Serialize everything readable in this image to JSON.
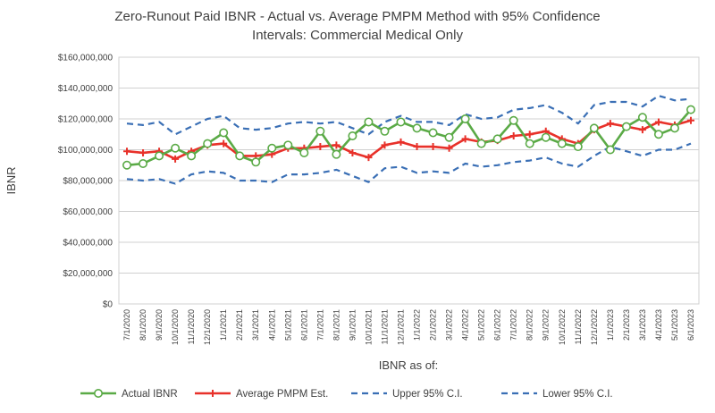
{
  "chart_data": {
    "type": "line",
    "title_line1": "Zero-Runout Paid IBNR - Actual vs. Average PMPM Method with 95% Confidence",
    "title_line2": "Intervals: Commercial Medical Only",
    "ylabel": "IBNR",
    "xlabel": "IBNR as of:",
    "ylim": [
      0,
      160000000
    ],
    "y_ticks": [
      0,
      20000000,
      40000000,
      60000000,
      80000000,
      100000000,
      120000000,
      140000000,
      160000000
    ],
    "y_tick_labels": [
      "$0",
      "$20,000,000",
      "$40,000,000",
      "$60,000,000",
      "$80,000,000",
      "$100,000,000",
      "$120,000,000",
      "$140,000,000",
      "$160,000,000"
    ],
    "grid": "horizontal",
    "legend_position": "bottom",
    "categories": [
      "7/1/2020",
      "8/1/2020",
      "9/1/2020",
      "10/1/2020",
      "11/1/2020",
      "12/1/2020",
      "1/1/2021",
      "2/1/2021",
      "3/1/2021",
      "4/1/2021",
      "5/1/2021",
      "6/1/2021",
      "7/1/2021",
      "8/1/2021",
      "9/1/2021",
      "10/1/2021",
      "11/1/2021",
      "12/1/2021",
      "1/1/2022",
      "2/1/2022",
      "3/1/2022",
      "4/1/2022",
      "5/1/2022",
      "6/1/2022",
      "7/1/2022",
      "8/1/2022",
      "9/1/2022",
      "10/1/2022",
      "11/1/2022",
      "12/1/2022",
      "1/1/2023",
      "2/1/2023",
      "3/1/2023",
      "4/1/2023",
      "5/1/2023",
      "6/1/2023"
    ],
    "x_axis_labels": [
      "7/1/2020",
      "8/1/2020",
      "9/1/2020",
      "10/1/2020",
      "11/1/2020",
      "12/1/2020",
      "1/1/2021",
      "2/1/2021",
      "3/1/2021",
      "4/1/2021",
      "5/1/2021",
      "6/1/2021",
      "7/1/2021",
      "8/1/2021",
      "9/1/2021",
      "10/1/2021",
      "11/1/2021",
      "12/1/2021",
      "1/1/2022",
      "2/1/2022",
      "3/1/2022",
      "4/1/2022",
      "5/1/2022",
      "6/1/2022",
      "7/1/2022",
      "8/1/2022",
      "9/1/2022",
      "10/1/2022",
      "11/1/2022",
      "12/1/2022",
      "1/1/2023",
      "2/1/2023",
      "3/1/2023",
      "4/1/2023",
      "5/1/2023",
      "6/1/2023"
    ],
    "series": [
      {
        "name": "Actual IBNR",
        "color": "#5aaa46",
        "style": "solid-circle-markers",
        "values": [
          90000000,
          91000000,
          96000000,
          101000000,
          96000000,
          104000000,
          111000000,
          96000000,
          92000000,
          101000000,
          103000000,
          98000000,
          112000000,
          97000000,
          109000000,
          118000000,
          112000000,
          118000000,
          114000000,
          111000000,
          108000000,
          120000000,
          104000000,
          107000000,
          119000000,
          104000000,
          108000000,
          104000000,
          102000000,
          114000000,
          100000000,
          115000000,
          121000000,
          110000000,
          114000000,
          126000000
        ]
      },
      {
        "name": "Average PMPM Est.",
        "color": "#e8312a",
        "style": "solid-plus-markers",
        "values": [
          99000000,
          98000000,
          99000000,
          94000000,
          99000000,
          103000000,
          104000000,
          96000000,
          96000000,
          97000000,
          101000000,
          101000000,
          102000000,
          103000000,
          98000000,
          95000000,
          103000000,
          105000000,
          102000000,
          102000000,
          101000000,
          107000000,
          105000000,
          106000000,
          109000000,
          110000000,
          112000000,
          107000000,
          104000000,
          113000000,
          117000000,
          115000000,
          113000000,
          118000000,
          116000000,
          119000000
        ]
      },
      {
        "name": "Upper 95% C.I.",
        "color": "#3a6fb5",
        "style": "dashed",
        "values": [
          117000000,
          116000000,
          118000000,
          110000000,
          115000000,
          120000000,
          122000000,
          114000000,
          113000000,
          114000000,
          117000000,
          118000000,
          117000000,
          118000000,
          114000000,
          110000000,
          118000000,
          122000000,
          118000000,
          118000000,
          116000000,
          123000000,
          120000000,
          121000000,
          126000000,
          127000000,
          129000000,
          124000000,
          117000000,
          129000000,
          131000000,
          131000000,
          128000000,
          135000000,
          132000000,
          133000000
        ]
      },
      {
        "name": "Lower 95% C.I.",
        "color": "#3a6fb5",
        "style": "dashed",
        "values": [
          81000000,
          80000000,
          81000000,
          78000000,
          84000000,
          86000000,
          85000000,
          80000000,
          80000000,
          79000000,
          84000000,
          84000000,
          85000000,
          87000000,
          83000000,
          79000000,
          88000000,
          89000000,
          85000000,
          86000000,
          85000000,
          91000000,
          89000000,
          90000000,
          92000000,
          93000000,
          95000000,
          91000000,
          89000000,
          96000000,
          102000000,
          99000000,
          96000000,
          100000000,
          100000000,
          104000000
        ]
      }
    ]
  }
}
